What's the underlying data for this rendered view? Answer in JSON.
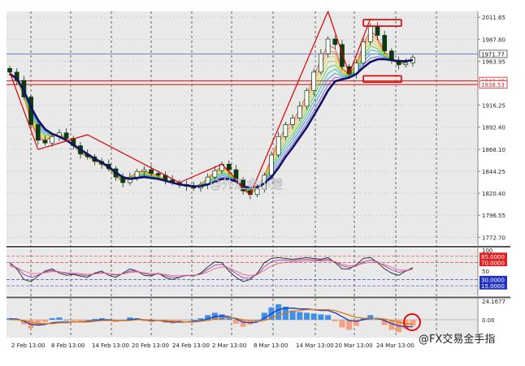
{
  "watermarks": {
    "center": "@外汇金小楚",
    "bottom_right": "@FX交易金手指"
  },
  "colors": {
    "panel_bg": "#e9e9e9",
    "grid_v": "#444444",
    "grid_h": "#bdbdbd",
    "candle": "#0c3a10",
    "ma_main": "#10126a",
    "trend_line": "#dd0000",
    "price_line_blue": "#5a6fd8",
    "price_line_red": "#dd2222",
    "rsi_black": "#202020",
    "rsi_purple": "#8a4ab8",
    "rsi_pink": "#e06080",
    "hist_pos": "#3f8ee8",
    "hist_neg": "#f2a080",
    "macd_blue": "#1a3ac0",
    "macd_orange": "#e07a10",
    "circle": "#e01010"
  },
  "chart_data": [
    {
      "type": "line",
      "panel": "price",
      "title": "",
      "xlabel": "",
      "ylabel": "",
      "ylim": [
        1765.0,
        2018.0
      ],
      "y_ticks": [
        "2011.65",
        "1987.80",
        "1963.95",
        "1916.25",
        "1892.40",
        "1868.10",
        "1844.25",
        "1820.40",
        "1796.55",
        "1772.70"
      ],
      "x_ticks": [
        "2 Feb 13:00",
        "8 Feb 13:00",
        "14 Feb 13:00",
        "20 Feb 13:00",
        "24 Feb 13:00",
        "2 Mar 13:00",
        "8 Mar 13:00",
        "14 Mar 13:00",
        "20 Mar 13:00",
        "24 Mar 13:00"
      ],
      "price_labels": [
        {
          "label": "1971.77",
          "value": 1971.77,
          "style": "current"
        },
        {
          "label": "1942.48",
          "value": 1942.48,
          "style": "level"
        },
        {
          "label": "1938.53",
          "value": 1938.53,
          "style": "level"
        }
      ],
      "close_series": [
        1952,
        1943,
        1925,
        1895,
        1878,
        1875,
        1882,
        1886,
        1880,
        1872,
        1863,
        1860,
        1855,
        1852,
        1847,
        1838,
        1832,
        1838,
        1844,
        1846,
        1842,
        1840,
        1835,
        1832,
        1830,
        1828,
        1826,
        1830,
        1838,
        1845,
        1852,
        1846,
        1835,
        1823,
        1819,
        1825,
        1840,
        1862,
        1882,
        1895,
        1902,
        1915,
        1932,
        1952,
        1972,
        1988,
        1982,
        1958,
        1950,
        1962,
        1985,
        2002,
        1992,
        1975,
        1965,
        1960,
        1962,
        1968
      ],
      "ma_series": [
        1950,
        1945,
        1932,
        1914,
        1900,
        1890,
        1885,
        1882,
        1878,
        1873,
        1868,
        1863,
        1858,
        1854,
        1849,
        1843,
        1838,
        1836,
        1837,
        1838,
        1837,
        1836,
        1834,
        1832,
        1830,
        1829,
        1828,
        1828,
        1830,
        1833,
        1836,
        1836,
        1833,
        1828,
        1826,
        1827,
        1831,
        1838,
        1848,
        1860,
        1870,
        1881,
        1892,
        1905,
        1918,
        1932,
        1942,
        1944,
        1946,
        1950,
        1957,
        1963,
        1966,
        1966,
        1965,
        1964,
        1964,
        1965
      ],
      "trend_lines": [
        [
          [
            0,
            1952
          ],
          [
            4,
            1868
          ]
        ],
        [
          [
            4,
            1868
          ],
          [
            11,
            1884
          ]
        ],
        [
          [
            11,
            1884
          ],
          [
            24,
            1832
          ]
        ],
        [
          [
            24,
            1832
          ],
          [
            30,
            1852
          ]
        ],
        [
          [
            30,
            1852
          ],
          [
            34,
            1819
          ]
        ],
        [
          [
            34,
            1819
          ],
          [
            45,
            2018
          ]
        ],
        [
          [
            45,
            2018
          ],
          [
            48,
            1950
          ]
        ],
        [
          [
            48,
            1950
          ],
          [
            51,
            2010
          ]
        ]
      ],
      "boxes": [
        {
          "x": [
            50,
            54
          ],
          "y": [
            2002,
            2009
          ]
        },
        {
          "x": [
            50,
            54
          ],
          "y": [
            1941,
            1948
          ]
        }
      ]
    },
    {
      "type": "line",
      "panel": "rsi",
      "ylim": [
        0,
        100
      ],
      "y_ticks": [
        "100",
        "85.0000",
        "70.0000",
        "50",
        "30.0000",
        "15.0000"
      ],
      "levels": [
        85,
        70,
        30,
        15
      ],
      "series": [
        {
          "values": [
            70,
            55,
            30,
            25,
            38,
            50,
            55,
            45,
            40,
            42,
            38,
            35,
            45,
            50,
            40,
            35,
            45,
            55,
            50,
            40,
            38,
            45,
            35,
            30,
            35,
            40,
            38,
            45,
            60,
            72,
            70,
            50,
            35,
            25,
            30,
            45,
            70,
            80,
            82,
            80,
            78,
            80,
            82,
            80,
            78,
            82,
            70,
            55,
            55,
            65,
            80,
            82,
            70,
            55,
            45,
            40,
            50,
            58
          ]
        },
        {
          "values": [
            66,
            58,
            42,
            35,
            40,
            48,
            52,
            48,
            44,
            43,
            41,
            39,
            43,
            47,
            44,
            40,
            43,
            50,
            50,
            44,
            41,
            43,
            39,
            35,
            36,
            39,
            39,
            43,
            54,
            64,
            66,
            56,
            44,
            34,
            34,
            42,
            60,
            72,
            76,
            76,
            75,
            77,
            78,
            77,
            76,
            78,
            72,
            62,
            58,
            62,
            72,
            76,
            72,
            62,
            53,
            47,
            50,
            55
          ]
        },
        {
          "values": [
            62,
            58,
            50,
            44,
            44,
            46,
            49,
            48,
            46,
            45,
            44,
            42,
            43,
            45,
            44,
            42,
            43,
            47,
            48,
            46,
            44,
            44,
            42,
            39,
            39,
            40,
            40,
            42,
            48,
            56,
            60,
            57,
            50,
            42,
            39,
            42,
            52,
            62,
            68,
            71,
            72,
            73,
            74,
            74,
            74,
            75,
            72,
            66,
            62,
            63,
            68,
            71,
            70,
            65,
            59,
            53,
            52,
            54
          ]
        }
      ]
    },
    {
      "type": "bar",
      "panel": "macd",
      "ylim": [
        -26,
        26
      ],
      "y_ticks": [
        "24.1677",
        "0.00"
      ],
      "histogram": [
        2,
        1,
        -6,
        -11,
        -7,
        -3,
        2,
        3,
        0,
        -2,
        -3,
        -2,
        1,
        2,
        -1,
        -3,
        0,
        3,
        2,
        -2,
        -3,
        -1,
        -4,
        -5,
        -3,
        -1,
        0,
        2,
        6,
        9,
        7,
        2,
        -5,
        -9,
        -6,
        0,
        9,
        16,
        20,
        17,
        12,
        10,
        9,
        8,
        7,
        6,
        -2,
        -10,
        -13,
        -8,
        2,
        6,
        1,
        -7,
        -13,
        -16,
        -12,
        -8
      ],
      "series": [
        {
          "values": [
            1,
            1,
            -2,
            -6,
            -7,
            -6,
            -4,
            -3,
            -3,
            -3,
            -3,
            -2,
            -1,
            0,
            0,
            -1,
            -1,
            0,
            1,
            0,
            -1,
            -1,
            -2,
            -3,
            -3,
            -3,
            -2,
            -1,
            1,
            4,
            5,
            4,
            1,
            -3,
            -4,
            -3,
            2,
            8,
            13,
            15,
            15,
            14,
            14,
            13,
            12,
            12,
            9,
            4,
            -1,
            -2,
            0,
            2,
            2,
            -1,
            -5,
            -8,
            -9,
            -9
          ]
        },
        {
          "values": [
            0,
            0,
            -1,
            -3,
            -5,
            -5,
            -5,
            -4,
            -4,
            -3,
            -3,
            -3,
            -2,
            -1,
            -1,
            -1,
            -1,
            -1,
            0,
            0,
            0,
            -1,
            -1,
            -2,
            -2,
            -3,
            -3,
            -2,
            -1,
            1,
            2,
            3,
            2,
            0,
            -1,
            -2,
            -1,
            2,
            6,
            9,
            11,
            12,
            13,
            13,
            13,
            13,
            12,
            9,
            6,
            3,
            2,
            2,
            2,
            1,
            -1,
            -3,
            -5,
            -6
          ]
        }
      ]
    }
  ]
}
